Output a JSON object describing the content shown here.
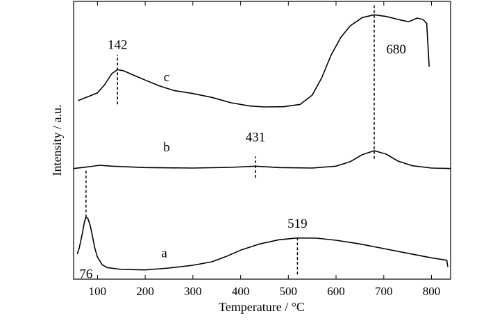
{
  "chart_data": {
    "type": "line",
    "xlabel": "Temperature / °C",
    "ylabel": "Intensity / a.u.",
    "xlim": [
      50,
      840
    ],
    "x_ticks": [
      100,
      200,
      300,
      400,
      500,
      600,
      700,
      800
    ],
    "y_ticks_shown": false,
    "grid": false,
    "series": [
      {
        "name": "a",
        "label_at": [
          240,
          0.95
        ],
        "points": [
          [
            58,
            1.1
          ],
          [
            62,
            1.35
          ],
          [
            68,
            1.95
          ],
          [
            73,
            2.5
          ],
          [
            76,
            2.68
          ],
          [
            80,
            2.62
          ],
          [
            85,
            2.3
          ],
          [
            90,
            1.8
          ],
          [
            95,
            1.3
          ],
          [
            100,
            0.95
          ],
          [
            110,
            0.62
          ],
          [
            120,
            0.5
          ],
          [
            150,
            0.42
          ],
          [
            200,
            0.4
          ],
          [
            250,
            0.48
          ],
          [
            300,
            0.6
          ],
          [
            340,
            0.75
          ],
          [
            370,
            0.98
          ],
          [
            400,
            1.25
          ],
          [
            440,
            1.52
          ],
          [
            480,
            1.7
          ],
          [
            519,
            1.78
          ],
          [
            560,
            1.77
          ],
          [
            600,
            1.68
          ],
          [
            650,
            1.52
          ],
          [
            700,
            1.32
          ],
          [
            750,
            1.12
          ],
          [
            800,
            0.92
          ],
          [
            832,
            0.82
          ],
          [
            834,
            0.55
          ]
        ]
      },
      {
        "name": "b",
        "label_at": [
          245,
          5.52
        ],
        "points": [
          [
            50,
            4.78
          ],
          [
            80,
            4.85
          ],
          [
            105,
            4.92
          ],
          [
            130,
            4.88
          ],
          [
            200,
            4.82
          ],
          [
            300,
            4.8
          ],
          [
            380,
            4.83
          ],
          [
            431,
            4.88
          ],
          [
            480,
            4.82
          ],
          [
            550,
            4.8
          ],
          [
            600,
            4.88
          ],
          [
            630,
            5.08
          ],
          [
            655,
            5.38
          ],
          [
            680,
            5.55
          ],
          [
            705,
            5.4
          ],
          [
            730,
            5.1
          ],
          [
            760,
            4.9
          ],
          [
            800,
            4.8
          ],
          [
            840,
            4.78
          ]
        ]
      },
      {
        "name": "c",
        "label_at": [
          245,
          8.55
        ],
        "points": [
          [
            60,
            7.72
          ],
          [
            80,
            7.88
          ],
          [
            100,
            8.05
          ],
          [
            115,
            8.4
          ],
          [
            130,
            8.88
          ],
          [
            142,
            9.05
          ],
          [
            155,
            9.0
          ],
          [
            175,
            8.82
          ],
          [
            200,
            8.6
          ],
          [
            230,
            8.35
          ],
          [
            260,
            8.15
          ],
          [
            300,
            8.02
          ],
          [
            340,
            7.85
          ],
          [
            380,
            7.62
          ],
          [
            420,
            7.48
          ],
          [
            450,
            7.44
          ],
          [
            490,
            7.45
          ],
          [
            525,
            7.55
          ],
          [
            550,
            7.95
          ],
          [
            570,
            8.7
          ],
          [
            590,
            9.7
          ],
          [
            610,
            10.45
          ],
          [
            630,
            10.95
          ],
          [
            655,
            11.3
          ],
          [
            680,
            11.42
          ],
          [
            705,
            11.35
          ],
          [
            730,
            11.22
          ],
          [
            752,
            11.12
          ],
          [
            770,
            11.28
          ],
          [
            782,
            11.22
          ],
          [
            790,
            11.05
          ],
          [
            795,
            9.2
          ]
        ]
      }
    ],
    "annotations": [
      {
        "text": "76",
        "x": 76,
        "line_from": 2.68,
        "line_to": 4.75,
        "label_x": 76,
        "label_y": 0.05
      },
      {
        "text": "519",
        "x": 519,
        "line_from": 0.2,
        "line_to": 1.78,
        "label_x": 519,
        "label_y": 2.22
      },
      {
        "text": "431",
        "x": 431,
        "line_from": 4.38,
        "line_to": 5.3,
        "label_x": 431,
        "label_y": 5.95
      },
      {
        "text": "142",
        "x": 142,
        "line_from": 7.55,
        "line_to": 9.7,
        "label_x": 142,
        "label_y": 9.95
      },
      {
        "text": "680",
        "x": 680,
        "line_from": 5.2,
        "line_to": 11.9,
        "label_x": 726,
        "label_y": 9.75
      }
    ]
  }
}
